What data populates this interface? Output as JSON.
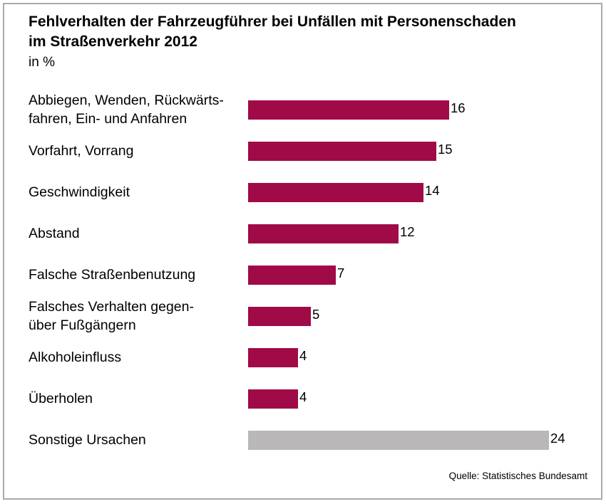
{
  "header": {
    "title": "Fehlverhalten der Fahrzeugführer bei Unfällen mit Personenschaden\nim Straßenverkehr 2012",
    "unit": "in %"
  },
  "footer": {
    "source": "Quelle: Statistisches Bundesamt"
  },
  "chart_data": {
    "type": "bar",
    "orientation": "horizontal",
    "title": "Fehlverhalten der Fahrzeugführer bei Unfällen mit Personenschaden im Straßenverkehr 2012",
    "unit": "in %",
    "categories": [
      "Abbiegen, Wenden, Rückwärtsfahren, Ein- und Anfahren",
      "Vorfahrt, Vorrang",
      "Geschwindigkeit",
      "Abstand",
      "Falsche Straßenbenutzung",
      "Falsches Verhalten gegenüber Fußgängern",
      "Alkoholeinfluss",
      "Überholen",
      "Sonstige Ursachen"
    ],
    "labels_rendered": [
      "Abbiegen, Wenden, Rückwärts-\nfahren, Ein- und Anfahren",
      "Vorfahrt, Vorrang",
      "Geschwindigkeit",
      "Abstand",
      "Falsche Straßenbenutzung",
      "Falsches Verhalten gegen-\nüber Fußgängern",
      "Alkoholeinfluss",
      "Überholen",
      "Sonstige Ursachen"
    ],
    "values": [
      16,
      15,
      14,
      12,
      7,
      5,
      4,
      4,
      24
    ],
    "colors": [
      "#A00A46",
      "#A00A46",
      "#A00A46",
      "#A00A46",
      "#A00A46",
      "#A00A46",
      "#A00A46",
      "#A00A46",
      "#B9B7B7"
    ],
    "xlim": [
      0,
      24
    ],
    "grid": false,
    "legend": false,
    "value_labels": "end-of-bar",
    "source": "Quelle: Statistisches Bundesamt"
  }
}
